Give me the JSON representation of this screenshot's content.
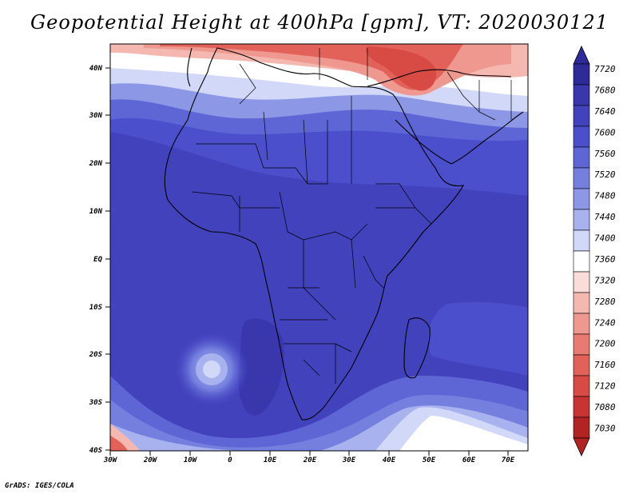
{
  "title": "Geopotential Height at 400hPa [gpm], VT: 2020030121",
  "credit": "GrADS: IGES/COLA",
  "map": {
    "lat_labels": [
      "40N",
      "30N",
      "20N",
      "10N",
      "EQ",
      "10S",
      "20S",
      "30S",
      "40S"
    ],
    "lon_labels": [
      "30W",
      "20W",
      "10W",
      "0",
      "10E",
      "20E",
      "30E",
      "40E",
      "50E",
      "60E",
      "70E"
    ]
  },
  "colorbar": {
    "labels": [
      "7720",
      "7680",
      "7640",
      "7600",
      "7560",
      "7520",
      "7480",
      "7440",
      "7400",
      "7360",
      "7320",
      "7280",
      "7240",
      "7200",
      "7160",
      "7120",
      "7080",
      "7030"
    ],
    "colors": [
      "#2e2a98",
      "#3a37ad",
      "#4242bd",
      "#4b4fcb",
      "#5e66d6",
      "#7580de",
      "#8c98e6",
      "#a8b2ee",
      "#d2d8f8",
      "#ffffff",
      "#fadcd8",
      "#f4b8b0",
      "#ee9890",
      "#e87a72",
      "#e2625a",
      "#d84a44",
      "#c83434",
      "#b22424"
    ],
    "low_color": "#b22424",
    "high_color": "#2e2a98"
  }
}
